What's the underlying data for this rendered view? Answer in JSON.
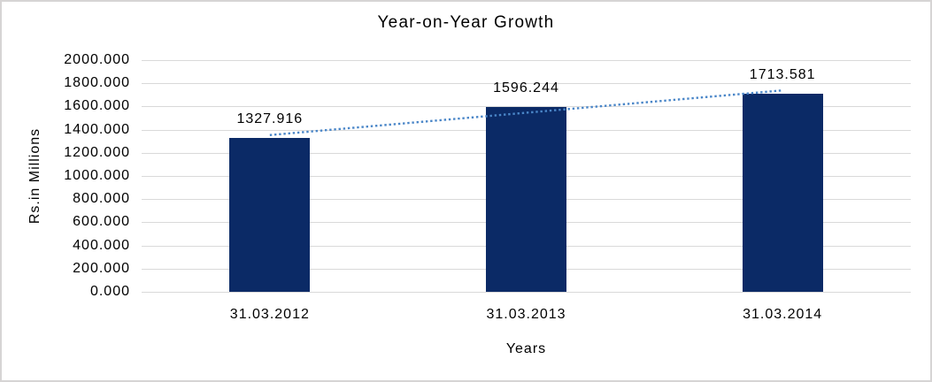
{
  "chart_data": {
    "type": "bar",
    "title": "Year-on-Year Growth",
    "xlabel": "Years",
    "ylabel": "Rs.in Millions",
    "categories": [
      "31.03.2012",
      "31.03.2013",
      "31.03.2014"
    ],
    "series": [
      {
        "name": "Rs.in Millions",
        "values": [
          1327.916,
          1596.244,
          1713.581
        ],
        "data_labels": [
          "1327.916",
          "1596.244",
          "1713.581"
        ]
      }
    ],
    "ylim": [
      0,
      2000
    ],
    "ytick_labels": [
      "0.000",
      "200.000",
      "400.000",
      "600.000",
      "800.000",
      "1000.000",
      "1200.000",
      "1400.000",
      "1600.000",
      "1800.000",
      "2000.000"
    ],
    "grid": true,
    "legend": "none",
    "trendline": {
      "type": "linear",
      "style": "dotted"
    },
    "colors": {
      "bar": "#0b2a66",
      "trendline": "#4a86c8",
      "gridline": "#d9d9d9",
      "text": "#000000",
      "frame_border": "#d6d4d4",
      "background": "#ffffff"
    }
  }
}
